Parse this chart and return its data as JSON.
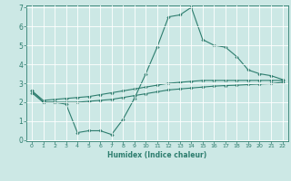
{
  "xlabel": "Humidex (Indice chaleur)",
  "ylabel": "",
  "x": [
    0,
    1,
    2,
    3,
    4,
    5,
    6,
    7,
    8,
    9,
    10,
    11,
    12,
    13,
    14,
    15,
    16,
    17,
    18,
    19,
    20,
    21,
    22
  ],
  "line1": [
    2.6,
    2.0,
    2.0,
    1.9,
    0.4,
    0.5,
    0.5,
    0.3,
    1.1,
    2.2,
    3.5,
    4.9,
    6.5,
    6.6,
    7.0,
    5.3,
    5.0,
    4.9,
    4.4,
    3.7,
    3.5,
    3.4,
    3.2
  ],
  "line2": [
    2.6,
    2.1,
    2.15,
    2.2,
    2.25,
    2.3,
    2.4,
    2.5,
    2.6,
    2.7,
    2.8,
    2.9,
    3.0,
    3.05,
    3.1,
    3.15,
    3.15,
    3.15,
    3.15,
    3.15,
    3.15,
    3.15,
    3.15
  ],
  "line3": [
    2.5,
    2.0,
    2.0,
    2.0,
    2.0,
    2.05,
    2.1,
    2.15,
    2.25,
    2.35,
    2.45,
    2.55,
    2.65,
    2.7,
    2.75,
    2.8,
    2.85,
    2.88,
    2.9,
    2.93,
    2.96,
    2.98,
    3.05
  ],
  "line_color": "#2d7d6e",
  "bg_color": "#cce8e5",
  "grid_color": "#b0d8d4",
  "ylim": [
    0,
    7
  ],
  "xlim": [
    -0.5,
    22.5
  ],
  "yticks": [
    0,
    1,
    2,
    3,
    4,
    5,
    6,
    7
  ],
  "xticks": [
    0,
    1,
    2,
    3,
    4,
    5,
    6,
    7,
    8,
    9,
    10,
    11,
    12,
    13,
    14,
    15,
    16,
    17,
    18,
    19,
    20,
    21,
    22
  ]
}
